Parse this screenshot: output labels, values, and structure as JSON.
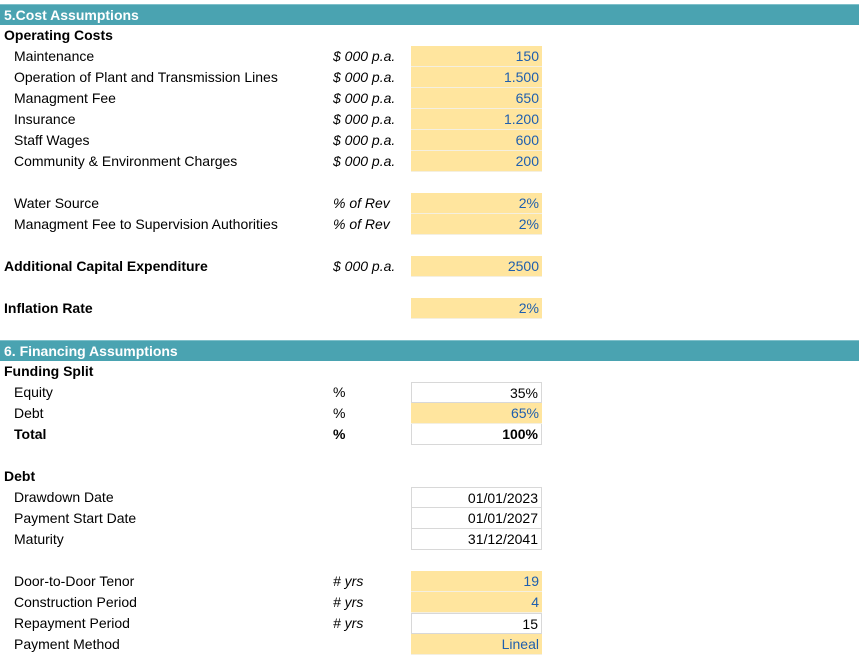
{
  "cost_section": {
    "title": "5.Cost Assumptions",
    "operating_costs_header": "Operating Costs",
    "operating_items": [
      {
        "label": "Maintenance",
        "unit": "$ 000 p.a.",
        "value": "150"
      },
      {
        "label": "Operation of Plant and Transmission Lines",
        "unit": "$ 000 p.a.",
        "value": "1.500"
      },
      {
        "label": "Managment Fee",
        "unit": "$ 000 p.a.",
        "value": "650"
      },
      {
        "label": "Insurance",
        "unit": "$ 000 p.a.",
        "value": "1.200"
      },
      {
        "label": "Staff Wages",
        "unit": "$ 000 p.a.",
        "value": "600"
      },
      {
        "label": "Community & Environment Charges",
        "unit": "$ 000 p.a.",
        "value": "200"
      }
    ],
    "revenue_items": [
      {
        "label": "Water Source",
        "unit": "% of Rev",
        "value": "2%"
      },
      {
        "label": "Managment Fee to Supervision Authorities",
        "unit": "% of Rev",
        "value": "2%"
      }
    ],
    "capex": {
      "label": "Additional Capital Expenditure",
      "unit": "$ 000 p.a.",
      "value": "2500"
    },
    "inflation": {
      "label": "Inflation Rate",
      "value": "2%"
    }
  },
  "financing_section": {
    "title": "6. Financing Assumptions",
    "funding_split_header": "Funding Split",
    "funding_items": [
      {
        "label": "Equity",
        "unit": "%",
        "value": "35%"
      },
      {
        "label": "Debt",
        "unit": "%",
        "value": "65%"
      },
      {
        "label": "Total",
        "unit": "%",
        "value": "100%"
      }
    ],
    "debt_header": "Debt",
    "debt_dates": [
      {
        "label": "Drawdown Date",
        "value": "01/01/2023"
      },
      {
        "label": "Payment Start Date",
        "value": "01/01/2027"
      },
      {
        "label": "Maturity",
        "value": "31/12/2041"
      }
    ],
    "debt_terms": [
      {
        "label": "Door-to-Door Tenor",
        "unit": "# yrs",
        "value": "19"
      },
      {
        "label": "Construction Period",
        "unit": "# yrs",
        "value": "4"
      },
      {
        "label": "Repayment Period",
        "unit": "# yrs",
        "value": "15"
      },
      {
        "label": "Payment Method",
        "unit": "",
        "value": "Lineal"
      }
    ]
  },
  "colors": {
    "header_teal": "#4aa3b1",
    "input_fill": "#ffe59e",
    "input_text": "#1f5fae"
  }
}
